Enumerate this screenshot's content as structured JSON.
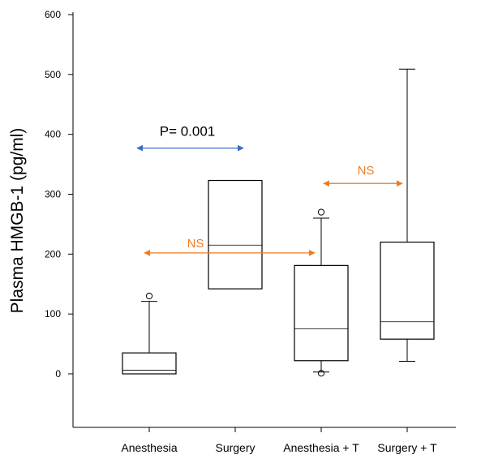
{
  "chart_data": {
    "type": "box",
    "ylabel": "Plasma HMGB-1 (pg/ml)",
    "ylim": [
      -90,
      600
    ],
    "y_ticks": [
      0,
      100,
      200,
      300,
      400,
      500,
      600
    ],
    "categories": [
      "Anesthesia",
      "Surgery",
      "Anesthesia + T",
      "Surgery + T"
    ],
    "boxes": [
      {
        "category": "Anesthesia",
        "min": 0,
        "q1": 0,
        "median": 6,
        "q3": 35,
        "max": 121,
        "outliers": [
          130
        ]
      },
      {
        "category": "Surgery",
        "min": null,
        "q1": 142,
        "median": 215,
        "q3": 323,
        "max": null,
        "outliers": []
      },
      {
        "category": "Anesthesia + T",
        "min": 3,
        "q1": 22,
        "median": 75,
        "q3": 181,
        "max": 260,
        "outliers": [
          270,
          1
        ]
      },
      {
        "category": "Surgery + T",
        "min": 21,
        "q1": 58,
        "median": 87,
        "q3": 220,
        "max": 509,
        "outliers": []
      }
    ],
    "annotations": [
      {
        "label": "P= 0.001",
        "from": "Anesthesia",
        "to": "Surgery",
        "y": 377,
        "color": "#3d6cc9"
      },
      {
        "label": "NS",
        "from": "Anesthesia",
        "to": "Anesthesia + T",
        "y": 202,
        "color": "#f07c22"
      },
      {
        "label": "NS",
        "from": "Anesthesia + T",
        "to": "Surgery + T",
        "y": 318,
        "color": "#f07c22"
      }
    ]
  }
}
